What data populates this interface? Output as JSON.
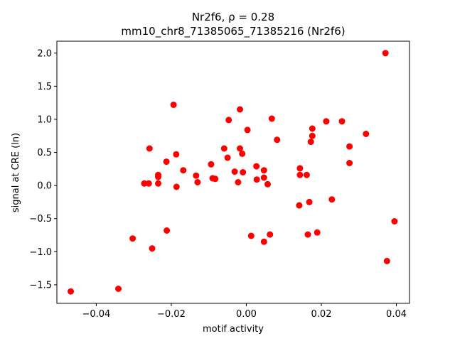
{
  "chart_data": {
    "type": "scatter",
    "title_line1": "Nr2f6, ρ = 0.28",
    "title_line2": "mm10_chr8_71385065_71385216 (Nr2f6)",
    "xlabel": "motif activity",
    "ylabel": "signal at CRE (ln)",
    "xlim": [
      -0.0505,
      0.0435
    ],
    "ylim": [
      -1.78,
      2.18
    ],
    "xticks": [
      -0.04,
      -0.02,
      0.0,
      0.02,
      0.04
    ],
    "xtick_labels": [
      "−0.04",
      "−0.02",
      "0.00",
      "0.02",
      "0.04"
    ],
    "yticks": [
      -1.5,
      -1.0,
      -0.5,
      0.0,
      0.5,
      1.0,
      1.5,
      2.0
    ],
    "ytick_labels": [
      "−1.5",
      "−1.0",
      "−0.5",
      "0.0",
      "0.5",
      "1.0",
      "1.5",
      "2.0"
    ],
    "marker_color": "#ff0000",
    "grid": false,
    "points": [
      {
        "x": -0.0468,
        "y": -1.6
      },
      {
        "x": -0.0341,
        "y": -1.56
      },
      {
        "x": -0.0303,
        "y": -0.8
      },
      {
        "x": -0.0272,
        "y": 0.03
      },
      {
        "x": -0.026,
        "y": 0.03
      },
      {
        "x": -0.0258,
        "y": 0.56
      },
      {
        "x": -0.0251,
        "y": -0.95
      },
      {
        "x": -0.0235,
        "y": 0.03
      },
      {
        "x": -0.0235,
        "y": 0.13
      },
      {
        "x": -0.0235,
        "y": 0.16
      },
      {
        "x": -0.0213,
        "y": 0.36
      },
      {
        "x": -0.0212,
        "y": -0.68
      },
      {
        "x": -0.0194,
        "y": 1.22
      },
      {
        "x": -0.0187,
        "y": 0.47
      },
      {
        "x": -0.0186,
        "y": -0.02
      },
      {
        "x": -0.0168,
        "y": 0.23
      },
      {
        "x": -0.0134,
        "y": 0.15
      },
      {
        "x": -0.013,
        "y": 0.05
      },
      {
        "x": -0.0094,
        "y": 0.32
      },
      {
        "x": -0.009,
        "y": 0.11
      },
      {
        "x": -0.0083,
        "y": 0.1
      },
      {
        "x": -0.0059,
        "y": 0.56
      },
      {
        "x": -0.005,
        "y": 0.42
      },
      {
        "x": -0.0047,
        "y": 0.99
      },
      {
        "x": -0.0031,
        "y": 0.21
      },
      {
        "x": -0.0022,
        "y": 0.05
      },
      {
        "x": -0.0017,
        "y": 1.15
      },
      {
        "x": -0.0017,
        "y": 0.56
      },
      {
        "x": -0.0011,
        "y": 0.48
      },
      {
        "x": -0.0009,
        "y": 0.2
      },
      {
        "x": 0.0003,
        "y": 0.84
      },
      {
        "x": 0.0013,
        "y": -0.76
      },
      {
        "x": 0.0027,
        "y": 0.29
      },
      {
        "x": 0.0028,
        "y": 0.09
      },
      {
        "x": 0.0047,
        "y": 0.23
      },
      {
        "x": 0.0047,
        "y": 0.12
      },
      {
        "x": 0.0047,
        "y": -0.85
      },
      {
        "x": 0.0057,
        "y": 0.02
      },
      {
        "x": 0.0063,
        "y": -0.74
      },
      {
        "x": 0.0068,
        "y": 1.01
      },
      {
        "x": 0.0082,
        "y": 0.69
      },
      {
        "x": 0.0141,
        "y": -0.3
      },
      {
        "x": 0.0143,
        "y": 0.26
      },
      {
        "x": 0.0143,
        "y": 0.16
      },
      {
        "x": 0.0161,
        "y": 0.16
      },
      {
        "x": 0.0164,
        "y": -0.74
      },
      {
        "x": 0.0168,
        "y": -0.25
      },
      {
        "x": 0.0172,
        "y": 0.66
      },
      {
        "x": 0.0176,
        "y": 0.75
      },
      {
        "x": 0.0176,
        "y": 0.86
      },
      {
        "x": 0.0189,
        "y": -0.71
      },
      {
        "x": 0.0213,
        "y": 0.97
      },
      {
        "x": 0.0228,
        "y": -0.21
      },
      {
        "x": 0.0255,
        "y": 0.97
      },
      {
        "x": 0.0275,
        "y": 0.59
      },
      {
        "x": 0.0275,
        "y": 0.34
      },
      {
        "x": 0.0319,
        "y": 0.78
      },
      {
        "x": 0.0371,
        "y": 2.0
      },
      {
        "x": 0.0375,
        "y": -1.14
      },
      {
        "x": 0.0395,
        "y": -0.54
      }
    ]
  }
}
